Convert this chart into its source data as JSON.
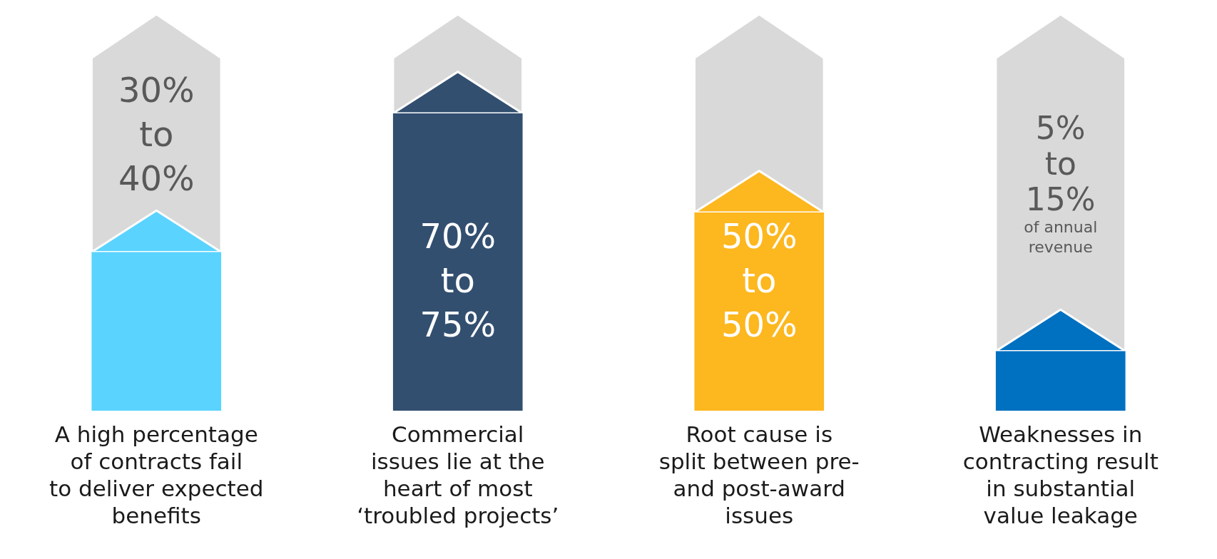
{
  "chart_data": {
    "type": "bar",
    "categories": [
      "A high percentage\nof contracts fail\nto deliver expected\nbenefits",
      "Commercial\nissues lie at the\nheart of most\n‘troubled projects’",
      "Root cause is\nsplit between pre-\nand post-award\nissues",
      "Weaknesses in\ncontracting result\nin substantial\nvalue leakage"
    ],
    "values": [
      40,
      75,
      50,
      15
    ],
    "colors": [
      "#5bd3ff",
      "#334f70",
      "#fdb71f",
      "#0070c0"
    ],
    "value_labels": [
      "30%\nto\n40%",
      "70%\nto\n75%",
      "50%\nto\n50%",
      "5%\nto\n15%\nof annual\nrevenue"
    ],
    "ylim": [
      0,
      100
    ]
  }
}
